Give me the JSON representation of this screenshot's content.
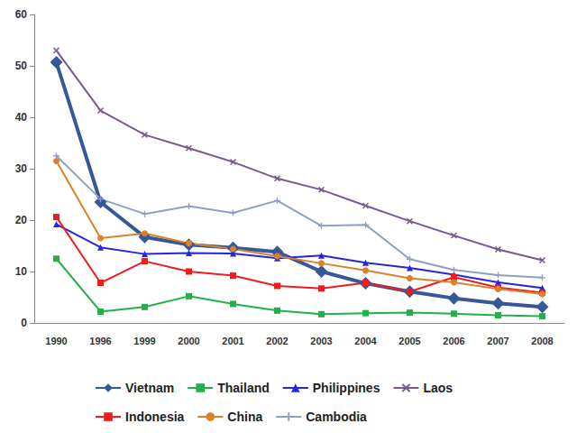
{
  "chart_data": {
    "type": "line",
    "categories": [
      "1990",
      "1996",
      "1999",
      "2000",
      "2001",
      "2002",
      "2003",
      "2004",
      "2005",
      "2006",
      "2007",
      "2008"
    ],
    "ylim": [
      0,
      60
    ],
    "yticks": [
      0,
      10,
      20,
      30,
      40,
      50,
      60
    ],
    "grid": false,
    "legend": "bottom",
    "series": [
      {
        "name": "Vietnam",
        "color": "#35589a",
        "marker": "diamond",
        "values": [
          50.7,
          23.5,
          16.7,
          15.2,
          14.6,
          13.8,
          10,
          7.7,
          6.1,
          4.8,
          3.8,
          3.1
        ]
      },
      {
        "name": "Thailand",
        "color": "#22b04a",
        "marker": "square",
        "values": [
          12.5,
          2.2,
          3.1,
          5.2,
          3.7,
          2.4,
          1.7,
          1.9,
          2,
          1.8,
          1.5,
          1.3
        ]
      },
      {
        "name": "Philippines",
        "color": "#2626e0",
        "marker": "triangle",
        "values": [
          19.2,
          14.7,
          13.4,
          13.6,
          13.5,
          12.6,
          13.1,
          11.7,
          10.7,
          9.4,
          7.9,
          6.8
        ]
      },
      {
        "name": "Laos",
        "color": "#7b5a8c",
        "marker": "x",
        "values": [
          53,
          41.3,
          36.6,
          34,
          31.3,
          28.1,
          25.9,
          22.8,
          19.8,
          17,
          14.3,
          12.2
        ]
      },
      {
        "name": "Indonesia",
        "color": "#ee1c1c",
        "marker": "square",
        "values": [
          20.6,
          7.8,
          12,
          10,
          9.2,
          7.2,
          6.7,
          7.8,
          6.1,
          8.9,
          6.9,
          5.9
        ]
      },
      {
        "name": "China",
        "color": "#d9822b",
        "marker": "circle",
        "values": [
          31.5,
          16.5,
          17.4,
          15.5,
          14.4,
          13,
          11.6,
          10.2,
          8.7,
          7.9,
          6.6,
          5.6
        ]
      },
      {
        "name": "Cambodia",
        "color": "#8ea1bf",
        "marker": "plus",
        "values": [
          32.5,
          24.1,
          21.2,
          22.7,
          21.4,
          23.8,
          18.9,
          19.1,
          12.4,
          10.3,
          9.3,
          8.8
        ]
      }
    ]
  }
}
